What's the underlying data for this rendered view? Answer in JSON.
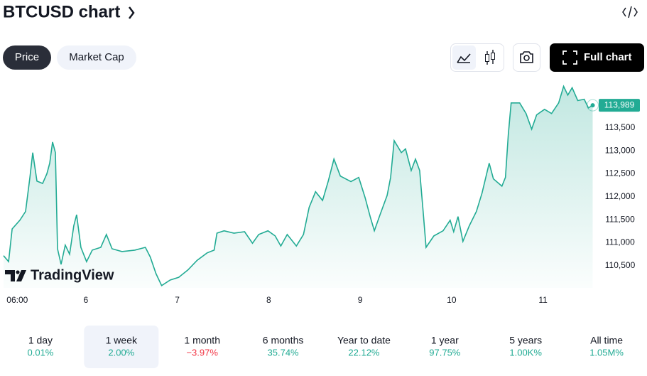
{
  "header": {
    "title": "BTCUSD chart"
  },
  "tabs": [
    "Price",
    "Market Cap"
  ],
  "full_chart_button": "Full chart",
  "watermark": "TradingView",
  "chart_data": {
    "type": "area",
    "color": "#22ab94",
    "x": [
      5.1,
      5.155,
      5.194,
      5.279,
      5.341,
      5.388,
      5.419,
      5.465,
      5.527,
      5.574,
      5.605,
      5.636,
      5.667,
      5.69,
      5.729,
      5.775,
      5.822,
      5.868,
      5.899,
      5.946,
      6.008,
      6.07,
      6.163,
      6.225,
      6.287,
      6.395,
      6.535,
      6.651,
      6.705,
      6.767,
      6.829,
      6.922,
      7.016,
      7.116,
      7.217,
      7.326,
      7.403,
      7.434,
      7.512,
      7.62,
      7.736,
      7.822,
      7.891,
      7.992,
      8.07,
      8.132,
      8.202,
      8.302,
      8.38,
      8.442,
      8.512,
      8.589,
      8.651,
      8.713,
      8.783,
      8.899,
      8.984,
      9.054,
      9.109,
      9.155,
      9.217,
      9.295,
      9.333,
      9.372,
      9.45,
      9.496,
      9.558,
      9.605,
      9.651,
      9.69,
      9.721,
      9.806,
      9.907,
      9.984,
      10.023,
      10.07,
      10.124,
      10.194,
      10.271,
      10.333,
      10.411,
      10.457,
      10.55,
      10.589,
      10.62,
      10.651,
      10.744,
      10.814,
      10.876,
      10.93,
      11.016,
      11.093,
      11.171,
      11.225,
      11.271,
      11.318,
      11.38,
      11.45,
      11.496,
      11.543
    ],
    "values": [
      110720,
      110590,
      111300,
      111490,
      111680,
      112420,
      112960,
      112340,
      112290,
      112500,
      112730,
      113190,
      112960,
      110870,
      110530,
      110950,
      110750,
      111370,
      111610,
      110900,
      110590,
      110840,
      110900,
      111180,
      110870,
      110810,
      110840,
      110900,
      110690,
      110330,
      110070,
      110190,
      110250,
      110410,
      110620,
      110780,
      110840,
      111210,
      111260,
      111210,
      111240,
      110990,
      111180,
      111260,
      111150,
      110930,
      111180,
      110930,
      111180,
      111770,
      112110,
      111920,
      112340,
      112820,
      112450,
      112330,
      112420,
      111980,
      111570,
      111260,
      111610,
      112030,
      112420,
      113220,
      112960,
      113040,
      112570,
      112820,
      112570,
      111640,
      110900,
      111150,
      111260,
      111490,
      111240,
      111570,
      111030,
      111370,
      111680,
      112080,
      112730,
      112390,
      112230,
      112420,
      113350,
      114040,
      114040,
      113810,
      113470,
      113780,
      113900,
      113810,
      114040,
      114400,
      114210,
      114370,
      114090,
      114120,
      113930,
      113989
    ],
    "last_price": {
      "value": 113989,
      "label": "113,989"
    },
    "xlim": [
      5.1,
      11.57
    ],
    "xticks": [
      {
        "value": 5.25,
        "label": "06:00"
      },
      6,
      7,
      8,
      9,
      10,
      11
    ],
    "ylim": [
      110020,
      114500
    ],
    "yticks": [
      {
        "value": 110500,
        "label": "110,500"
      },
      {
        "value": 111000,
        "label": "111,000"
      },
      {
        "value": 111500,
        "label": "111,500"
      },
      {
        "value": 112000,
        "label": "112,000"
      },
      {
        "value": 112500,
        "label": "112,500"
      },
      {
        "value": 113000,
        "label": "113,000"
      },
      {
        "value": 113500,
        "label": "113,500"
      }
    ]
  },
  "ranges": {
    "selected": 1,
    "items": [
      {
        "label": "1 day",
        "change": "0.01%",
        "color": "#22ab94"
      },
      {
        "label": "1 week",
        "change": "2.00%",
        "color": "#22ab94"
      },
      {
        "label": "1 month",
        "change": "−3.97%",
        "color": "#f23645"
      },
      {
        "label": "6 months",
        "change": "35.74%",
        "color": "#22ab94"
      },
      {
        "label": "Year to date",
        "change": "22.12%",
        "color": "#22ab94"
      },
      {
        "label": "1 year",
        "change": "97.75%",
        "color": "#22ab94"
      },
      {
        "label": "5 years",
        "change": "1.00K%",
        "color": "#22ab94"
      },
      {
        "label": "All time",
        "change": "1.05M%",
        "color": "#22ab94"
      }
    ]
  }
}
